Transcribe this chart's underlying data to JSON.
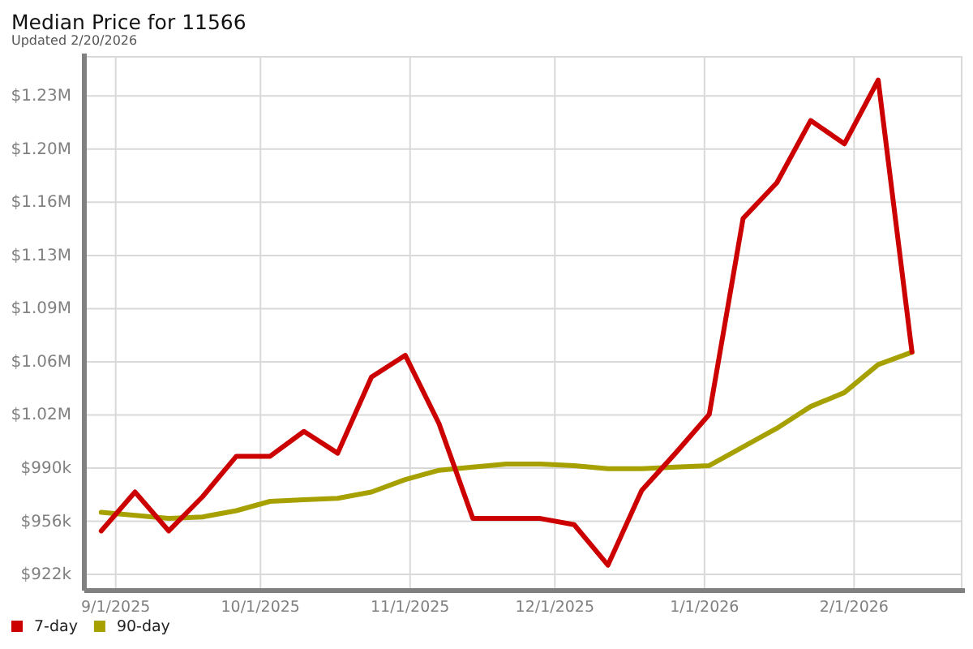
{
  "chart_data": {
    "type": "line",
    "title": "Median Price for 11566",
    "subtitle": "Updated 2/20/2026",
    "x": [
      "2025-08-29",
      "2025-09-05",
      "2025-09-12",
      "2025-09-19",
      "2025-09-26",
      "2025-10-03",
      "2025-10-10",
      "2025-10-17",
      "2025-10-24",
      "2025-10-31",
      "2025-11-07",
      "2025-11-14",
      "2025-11-21",
      "2025-11-28",
      "2025-12-05",
      "2025-12-12",
      "2025-12-19",
      "2025-12-26",
      "2026-01-02",
      "2026-01-09",
      "2026-01-16",
      "2026-01-23",
      "2026-01-30",
      "2026-02-06",
      "2026-02-13"
    ],
    "series": [
      {
        "name": "7-day",
        "color": "#cc0000",
        "values": [
          950000,
          975000,
          950000,
          972000,
          998000,
          998000,
          1014000,
          1000000,
          1049000,
          1063000,
          1019000,
          958000,
          958000,
          958000,
          954000,
          928000,
          976000,
          1000000,
          1025000,
          1151000,
          1174000,
          1214000,
          1199000,
          1240000,
          1065000
        ]
      },
      {
        "name": "90-day",
        "color": "#a6a100",
        "values": [
          962000,
          960000,
          958000,
          959000,
          963000,
          969000,
          970000,
          971000,
          975000,
          983000,
          989000,
          991000,
          993000,
          993000,
          992000,
          990000,
          990000,
          991000,
          992000,
          1004000,
          1016000,
          1030000,
          1039000,
          1057000,
          1065000
        ]
      }
    ],
    "xlim": [
      "2025-08-25T12:00",
      "2026-02-23T07:00"
    ],
    "xticks": [
      {
        "value": "2025-09-01",
        "label": "9/1/2025"
      },
      {
        "value": "2025-10-01",
        "label": "10/1/2025"
      },
      {
        "value": "2025-11-01",
        "label": "11/1/2025"
      },
      {
        "value": "2025-12-01",
        "label": "12/1/2025"
      },
      {
        "value": "2026-01-01",
        "label": "1/1/2026"
      },
      {
        "value": "2026-02-01",
        "label": "2/1/2026"
      }
    ],
    "ylim": [
      911600,
      1255000
    ],
    "yticks": [
      {
        "value": 922000,
        "label": "$922k"
      },
      {
        "value": 956200,
        "label": "$956k"
      },
      {
        "value": 990400,
        "label": "$990k"
      },
      {
        "value": 1024600,
        "label": "$1.02M"
      },
      {
        "value": 1058800,
        "label": "$1.06M"
      },
      {
        "value": 1093000,
        "label": "$1.09M"
      },
      {
        "value": 1127200,
        "label": "$1.13M"
      },
      {
        "value": 1161400,
        "label": "$1.16M"
      },
      {
        "value": 1195600,
        "label": "$1.20M"
      },
      {
        "value": 1229800,
        "label": "$1.23M"
      }
    ],
    "grid": true,
    "legend": "bottom left"
  }
}
